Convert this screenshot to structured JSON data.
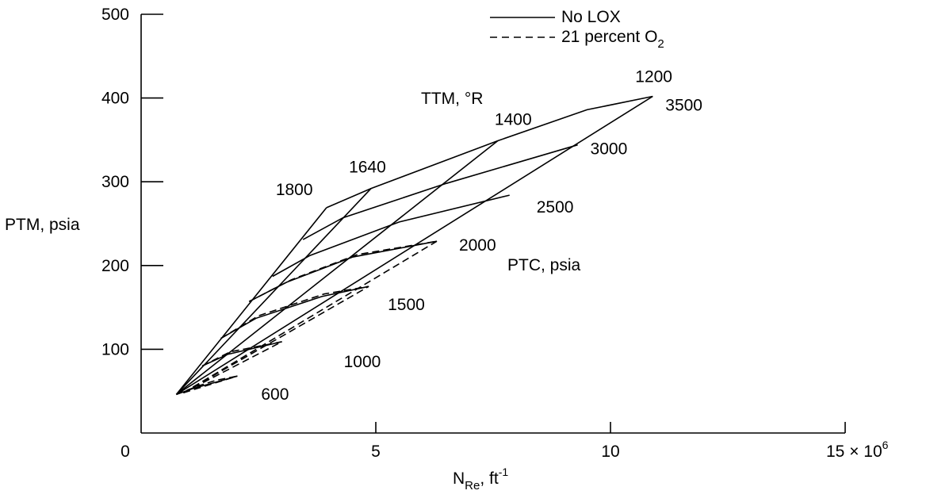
{
  "chart_data": {
    "type": "line",
    "xlabel": "N",
    "xlabel_subscript": "Re",
    "xlabel_suffix": ", ft",
    "xlabel_superscript": "-1",
    "ylabel": "PTM, psia",
    "xlim": [
      0,
      15
    ],
    "ylim": [
      0,
      500
    ],
    "x_ticks": [
      {
        "value": 0,
        "label": "0"
      },
      {
        "value": 5,
        "label": "5"
      },
      {
        "value": 10,
        "label": "10"
      },
      {
        "value": 15,
        "label": "15 × 10"
      }
    ],
    "x_tick_exponent": "6",
    "y_ticks": [
      {
        "value": 100,
        "label": "100"
      },
      {
        "value": 200,
        "label": "200"
      },
      {
        "value": 300,
        "label": "300"
      },
      {
        "value": 400,
        "label": "400"
      },
      {
        "value": 500,
        "label": "500"
      }
    ],
    "legend": {
      "placement": "top-center",
      "entries": [
        {
          "label": "No LOX",
          "style": "solid"
        },
        {
          "label": "21 percent O",
          "subscript": "2",
          "style": "dashed"
        }
      ]
    },
    "family_labels": {
      "ttm": "TTM, °R",
      "ptc": "PTC, psia"
    },
    "ttm_lines": [
      {
        "label": "1800",
        "points": [
          [
            0.75,
            46
          ],
          [
            3.95,
            269
          ]
        ]
      },
      {
        "label": "1640",
        "points": [
          [
            0.75,
            46
          ],
          [
            4.9,
            292
          ]
        ]
      },
      {
        "label": "1400",
        "points": [
          [
            0.75,
            46
          ],
          [
            7.6,
            349
          ]
        ]
      },
      {
        "label": "1200",
        "points": [
          [
            0.75,
            46
          ],
          [
            10.9,
            402
          ]
        ]
      }
    ],
    "ptc_lines_solid": [
      {
        "label": "3500",
        "points": [
          [
            3.95,
            269
          ],
          [
            4.9,
            292
          ],
          [
            7.6,
            349
          ],
          [
            9.5,
            386
          ],
          [
            10.9,
            402
          ]
        ]
      },
      {
        "label": "3000",
        "points": [
          [
            3.45,
            231
          ],
          [
            4.3,
            257
          ],
          [
            6.5,
            298
          ],
          [
            9.3,
            344
          ]
        ]
      },
      {
        "label": "2500",
        "points": [
          [
            2.8,
            187
          ],
          [
            3.6,
            212
          ],
          [
            5.5,
            252
          ],
          [
            7.85,
            284
          ]
        ]
      },
      {
        "label": "2000",
        "points": [
          [
            2.3,
            157
          ],
          [
            3.1,
            180
          ],
          [
            4.5,
            210
          ],
          [
            6.3,
            229
          ]
        ]
      },
      {
        "label": "1500",
        "points": [
          [
            1.7,
            113
          ],
          [
            2.45,
            137
          ],
          [
            3.85,
            163
          ],
          [
            4.85,
            175
          ]
        ]
      },
      {
        "label": "1000",
        "points": [
          [
            1.3,
            80
          ],
          [
            1.85,
            94
          ],
          [
            3.0,
            109
          ]
        ]
      },
      {
        "label": "600",
        "points": [
          [
            0.75,
            46
          ],
          [
            1.1,
            53
          ],
          [
            1.55,
            60
          ],
          [
            2.05,
            68
          ]
        ]
      }
    ],
    "ptc_lines_dashed": [
      {
        "points": [
          [
            2.3,
            157
          ],
          [
            3.2,
            183
          ],
          [
            4.6,
            213
          ],
          [
            6.3,
            229
          ]
        ]
      },
      {
        "points": [
          [
            1.7,
            113
          ],
          [
            2.5,
            140
          ],
          [
            3.9,
            166
          ],
          [
            4.85,
            175
          ]
        ]
      },
      {
        "points": [
          [
            1.3,
            80
          ],
          [
            1.9,
            97
          ],
          [
            3.0,
            109
          ]
        ]
      },
      {
        "points": [
          [
            0.75,
            46
          ],
          [
            1.2,
            56
          ],
          [
            1.6,
            63
          ],
          [
            2.05,
            68
          ]
        ]
      }
    ],
    "ttm_lines_dashed": [
      {
        "points": [
          [
            0.9,
            48
          ],
          [
            6.3,
            229
          ]
        ]
      },
      {
        "points": [
          [
            0.9,
            48
          ],
          [
            4.85,
            175
          ]
        ]
      },
      {
        "points": [
          [
            0.9,
            48
          ],
          [
            3.0,
            109
          ]
        ]
      },
      {
        "points": [
          [
            0.9,
            48
          ],
          [
            2.05,
            68
          ]
        ]
      }
    ]
  }
}
